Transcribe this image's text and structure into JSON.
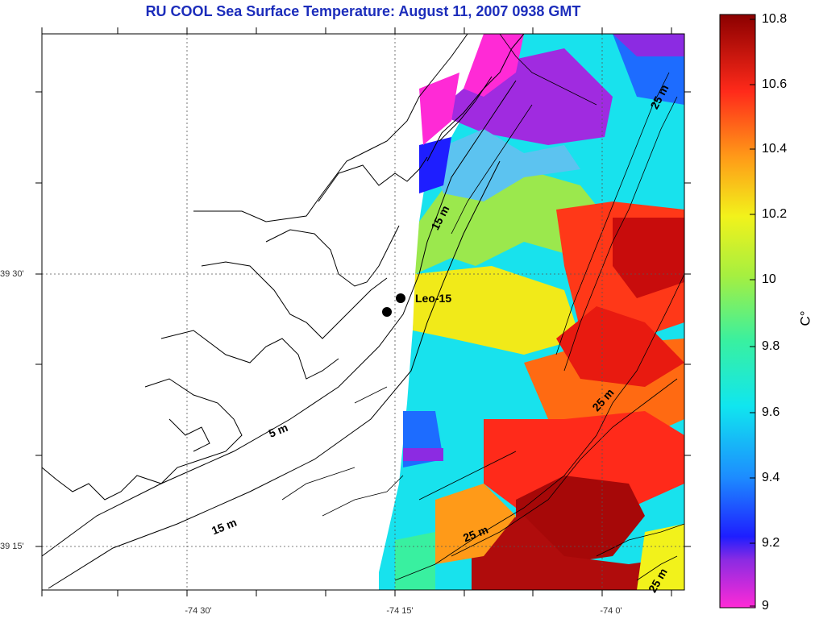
{
  "map": {
    "title": "RU COOL  Sea Surface Temperature:  August 11, 2007 0938 GMT",
    "latitude_labels": [
      "39 30'",
      "39 15'"
    ],
    "longitude_labels": [
      "-74 30'",
      "-74 15'",
      "-74 0'"
    ],
    "station": {
      "label": "Leo-15"
    },
    "isobath_labels": [
      "5 m",
      "15 m",
      "15 m",
      "25 m",
      "25 m",
      "25 m",
      "25 m"
    ]
  },
  "colorbar": {
    "unit": "C°",
    "ticks": [
      "10.8",
      "10.6",
      "10.4",
      "10.2",
      "10",
      "9.8",
      "9.6",
      "9.4",
      "9.2",
      "9"
    ],
    "min": 9,
    "max": 10.8
  },
  "colors": {
    "title": "#1c2dbb",
    "land_background": "#ffffff"
  }
}
